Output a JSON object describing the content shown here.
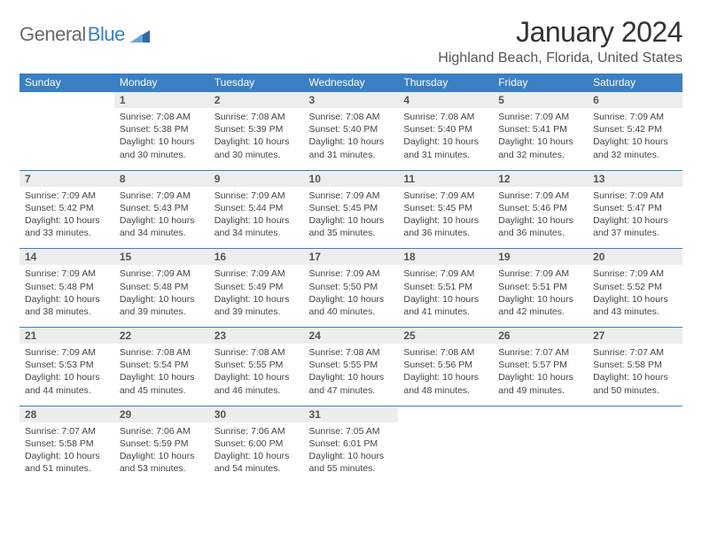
{
  "logo": {
    "part1": "General",
    "part2": "Blue",
    "triangle_color": "#2f6aa8"
  },
  "title": "January 2024",
  "location": "Highland Beach, Florida, United States",
  "colors": {
    "header_bg": "#3b7fc4",
    "header_text": "#ffffff",
    "daynum_bg": "#eceeee",
    "rule": "#3b7fc4"
  },
  "day_headers": [
    "Sunday",
    "Monday",
    "Tuesday",
    "Wednesday",
    "Thursday",
    "Friday",
    "Saturday"
  ],
  "weeks": [
    [
      null,
      {
        "n": "1",
        "sr": "7:08 AM",
        "ss": "5:38 PM",
        "dl": "10 hours and 30 minutes."
      },
      {
        "n": "2",
        "sr": "7:08 AM",
        "ss": "5:39 PM",
        "dl": "10 hours and 30 minutes."
      },
      {
        "n": "3",
        "sr": "7:08 AM",
        "ss": "5:40 PM",
        "dl": "10 hours and 31 minutes."
      },
      {
        "n": "4",
        "sr": "7:08 AM",
        "ss": "5:40 PM",
        "dl": "10 hours and 31 minutes."
      },
      {
        "n": "5",
        "sr": "7:09 AM",
        "ss": "5:41 PM",
        "dl": "10 hours and 32 minutes."
      },
      {
        "n": "6",
        "sr": "7:09 AM",
        "ss": "5:42 PM",
        "dl": "10 hours and 32 minutes."
      }
    ],
    [
      {
        "n": "7",
        "sr": "7:09 AM",
        "ss": "5:42 PM",
        "dl": "10 hours and 33 minutes."
      },
      {
        "n": "8",
        "sr": "7:09 AM",
        "ss": "5:43 PM",
        "dl": "10 hours and 34 minutes."
      },
      {
        "n": "9",
        "sr": "7:09 AM",
        "ss": "5:44 PM",
        "dl": "10 hours and 34 minutes."
      },
      {
        "n": "10",
        "sr": "7:09 AM",
        "ss": "5:45 PM",
        "dl": "10 hours and 35 minutes."
      },
      {
        "n": "11",
        "sr": "7:09 AM",
        "ss": "5:45 PM",
        "dl": "10 hours and 36 minutes."
      },
      {
        "n": "12",
        "sr": "7:09 AM",
        "ss": "5:46 PM",
        "dl": "10 hours and 36 minutes."
      },
      {
        "n": "13",
        "sr": "7:09 AM",
        "ss": "5:47 PM",
        "dl": "10 hours and 37 minutes."
      }
    ],
    [
      {
        "n": "14",
        "sr": "7:09 AM",
        "ss": "5:48 PM",
        "dl": "10 hours and 38 minutes."
      },
      {
        "n": "15",
        "sr": "7:09 AM",
        "ss": "5:48 PM",
        "dl": "10 hours and 39 minutes."
      },
      {
        "n": "16",
        "sr": "7:09 AM",
        "ss": "5:49 PM",
        "dl": "10 hours and 39 minutes."
      },
      {
        "n": "17",
        "sr": "7:09 AM",
        "ss": "5:50 PM",
        "dl": "10 hours and 40 minutes."
      },
      {
        "n": "18",
        "sr": "7:09 AM",
        "ss": "5:51 PM",
        "dl": "10 hours and 41 minutes."
      },
      {
        "n": "19",
        "sr": "7:09 AM",
        "ss": "5:51 PM",
        "dl": "10 hours and 42 minutes."
      },
      {
        "n": "20",
        "sr": "7:09 AM",
        "ss": "5:52 PM",
        "dl": "10 hours and 43 minutes."
      }
    ],
    [
      {
        "n": "21",
        "sr": "7:09 AM",
        "ss": "5:53 PM",
        "dl": "10 hours and 44 minutes."
      },
      {
        "n": "22",
        "sr": "7:08 AM",
        "ss": "5:54 PM",
        "dl": "10 hours and 45 minutes."
      },
      {
        "n": "23",
        "sr": "7:08 AM",
        "ss": "5:55 PM",
        "dl": "10 hours and 46 minutes."
      },
      {
        "n": "24",
        "sr": "7:08 AM",
        "ss": "5:55 PM",
        "dl": "10 hours and 47 minutes."
      },
      {
        "n": "25",
        "sr": "7:08 AM",
        "ss": "5:56 PM",
        "dl": "10 hours and 48 minutes."
      },
      {
        "n": "26",
        "sr": "7:07 AM",
        "ss": "5:57 PM",
        "dl": "10 hours and 49 minutes."
      },
      {
        "n": "27",
        "sr": "7:07 AM",
        "ss": "5:58 PM",
        "dl": "10 hours and 50 minutes."
      }
    ],
    [
      {
        "n": "28",
        "sr": "7:07 AM",
        "ss": "5:58 PM",
        "dl": "10 hours and 51 minutes."
      },
      {
        "n": "29",
        "sr": "7:06 AM",
        "ss": "5:59 PM",
        "dl": "10 hours and 53 minutes."
      },
      {
        "n": "30",
        "sr": "7:06 AM",
        "ss": "6:00 PM",
        "dl": "10 hours and 54 minutes."
      },
      {
        "n": "31",
        "sr": "7:05 AM",
        "ss": "6:01 PM",
        "dl": "10 hours and 55 minutes."
      },
      null,
      null,
      null
    ]
  ],
  "labels": {
    "sunrise": "Sunrise: ",
    "sunset": "Sunset: ",
    "daylight": "Daylight: "
  }
}
